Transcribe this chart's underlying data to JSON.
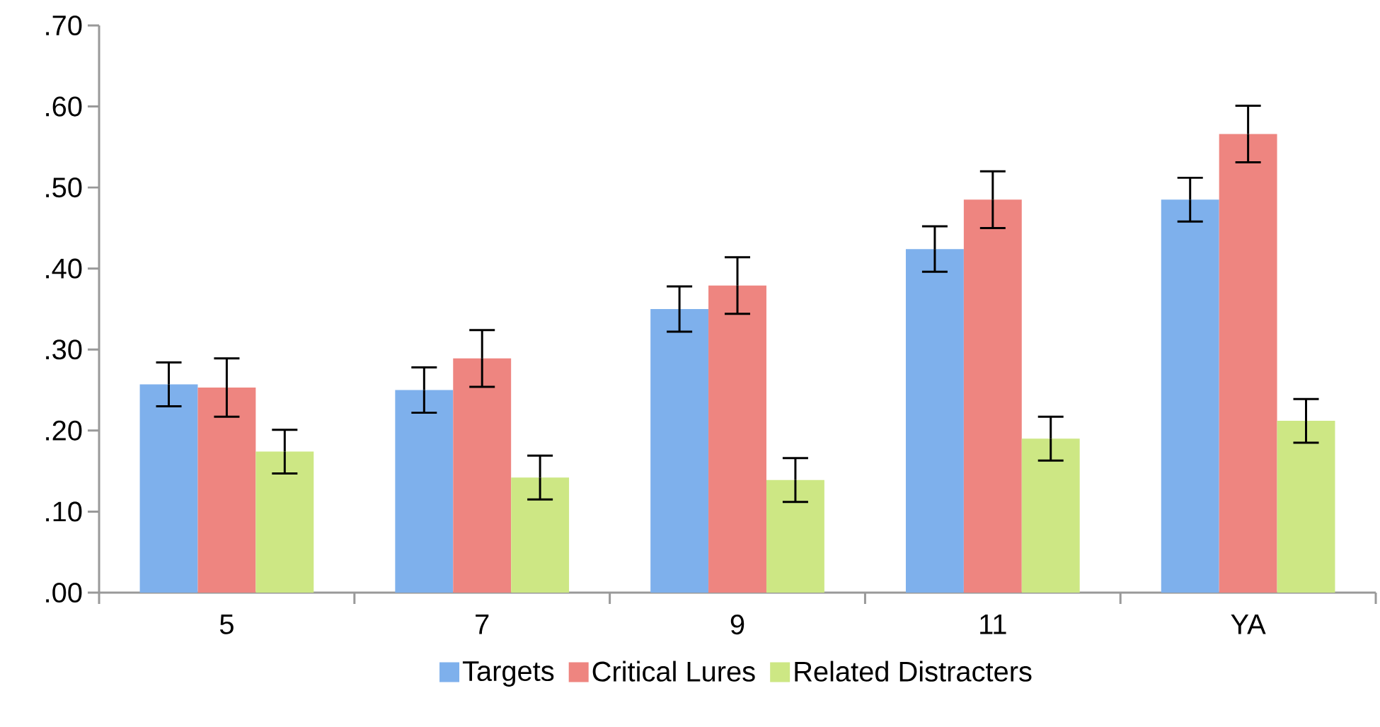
{
  "chart_data": {
    "type": "bar",
    "categories": [
      "5",
      "7",
      "9",
      "11",
      "YA"
    ],
    "series": [
      {
        "name": "Targets",
        "color": "#7eb0ec",
        "values": [
          0.257,
          0.25,
          0.35,
          0.424,
          0.485
        ],
        "errors": [
          0.027,
          0.028,
          0.028,
          0.028,
          0.027
        ]
      },
      {
        "name": "Critical Lures",
        "color": "#ee8580",
        "values": [
          0.253,
          0.289,
          0.379,
          0.485,
          0.566
        ],
        "errors": [
          0.036,
          0.035,
          0.035,
          0.035,
          0.035
        ]
      },
      {
        "name": "Related Distracters",
        "color": "#cde784",
        "values": [
          0.174,
          0.142,
          0.139,
          0.19,
          0.212
        ],
        "errors": [
          0.027,
          0.027,
          0.027,
          0.027,
          0.027
        ]
      }
    ],
    "ylim": [
      0,
      0.7
    ],
    "yticks": [
      {
        "value": 0,
        "label": ".00"
      },
      {
        "value": 0.1,
        "label": ".10"
      },
      {
        "value": 0.2,
        "label": ".20"
      },
      {
        "value": 0.3,
        "label": ".30"
      },
      {
        "value": 0.4,
        "label": ".40"
      },
      {
        "value": 0.5,
        "label": ".50"
      },
      {
        "value": 0.6,
        "label": ".60"
      },
      {
        "value": 0.7,
        "label": ".70"
      }
    ],
    "legend": "bottom"
  }
}
